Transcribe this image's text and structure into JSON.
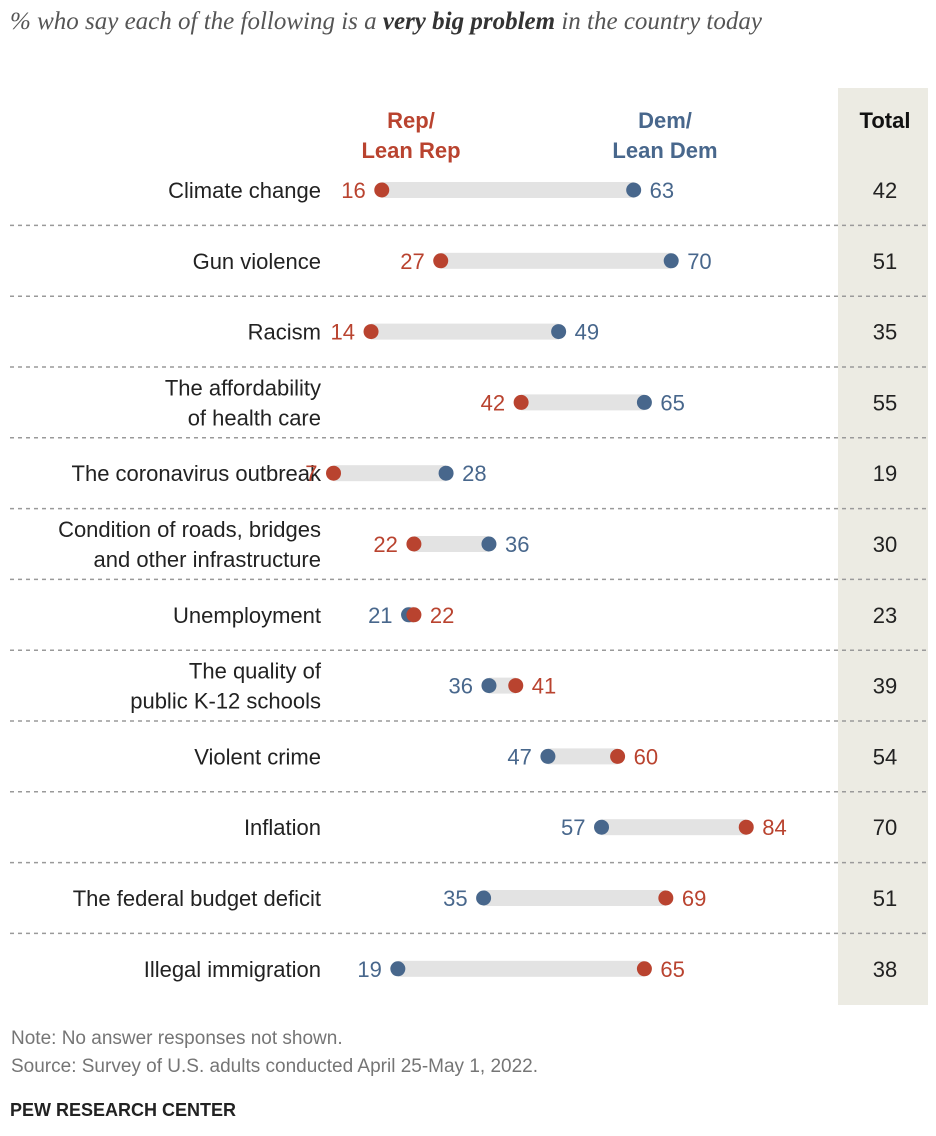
{
  "title": {
    "prefix": "% who say each of the following is a",
    "emphasis": "very big problem",
    "suffix": "in the country today"
  },
  "colors": {
    "rep": "#b9432f",
    "dem": "#48678c",
    "bar": "#e3e3e3",
    "total_bg": "#ecebe3",
    "divider": "#9a9a9a"
  },
  "chart_data": {
    "type": "dot",
    "xlim": [
      0,
      100
    ],
    "categories": [
      "Climate change",
      "Gun violence",
      "Racism",
      "The affordability of health care",
      "The coronavirus outbreak",
      "Condition of roads, bridges and other infrastructure",
      "Unemployment",
      "The quality of public K-12 schools",
      "Violent crime",
      "Inflation",
      "The federal budget deficit",
      "Illegal immigration"
    ],
    "category_lines": [
      [
        "Climate change"
      ],
      [
        "Gun violence"
      ],
      [
        "Racism"
      ],
      [
        "The affordability",
        "of health care"
      ],
      [
        "The coronavirus outbreak"
      ],
      [
        "Condition of roads, bridges",
        "and other infrastructure"
      ],
      [
        "Unemployment"
      ],
      [
        "The quality of",
        "public K-12 schools"
      ],
      [
        "Violent crime"
      ],
      [
        "Inflation"
      ],
      [
        "The federal budget deficit"
      ],
      [
        "Illegal immigration"
      ]
    ],
    "series": [
      {
        "name": "Rep/ Lean Rep",
        "label_lines": [
          "Rep/",
          "Lean Rep"
        ],
        "color": "#b9432f",
        "values": [
          16,
          27,
          14,
          42,
          7,
          22,
          22,
          41,
          60,
          84,
          69,
          65
        ]
      },
      {
        "name": "Dem/ Lean Dem",
        "label_lines": [
          "Dem/",
          "Lean Dem"
        ],
        "color": "#48678c",
        "values": [
          63,
          70,
          49,
          65,
          28,
          36,
          21,
          36,
          47,
          57,
          35,
          19
        ]
      }
    ],
    "total": {
      "label": "Total",
      "values": [
        42,
        51,
        35,
        55,
        19,
        30,
        23,
        39,
        54,
        70,
        51,
        38
      ]
    }
  },
  "footer": {
    "note": "Note: No answer responses not shown.",
    "source": "Source: Survey of U.S. adults conducted April 25-May 1, 2022.",
    "org": "PEW RESEARCH CENTER"
  }
}
